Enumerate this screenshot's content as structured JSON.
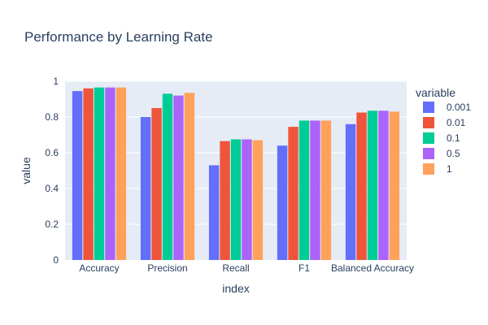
{
  "chart_data": {
    "type": "bar",
    "title": "Performance by Learning Rate",
    "xlabel": "index",
    "ylabel": "value",
    "ylim": [
      0,
      1
    ],
    "yticks": [
      0,
      0.2,
      0.4,
      0.6,
      0.8,
      1
    ],
    "ytick_labels": [
      "0",
      "0.2",
      "0.4",
      "0.6",
      "0.8",
      "1"
    ],
    "grid": true,
    "legend_title": "variable",
    "legend_position": "right",
    "categories": [
      "Accuracy",
      "Precision",
      "Recall",
      "F1",
      "Balanced Accuracy"
    ],
    "series": [
      {
        "name": "0.001",
        "color": "#636efa",
        "values": [
          0.945,
          0.8,
          0.53,
          0.64,
          0.76
        ]
      },
      {
        "name": "0.01",
        "color": "#ef553b",
        "values": [
          0.96,
          0.85,
          0.665,
          0.745,
          0.825
        ]
      },
      {
        "name": "0.1",
        "color": "#00cc96",
        "values": [
          0.965,
          0.93,
          0.675,
          0.78,
          0.835
        ]
      },
      {
        "name": "0.5",
        "color": "#ab63fa",
        "values": [
          0.965,
          0.92,
          0.675,
          0.78,
          0.835
        ]
      },
      {
        "name": "1",
        "color": "#ffa15a",
        "values": [
          0.965,
          0.935,
          0.67,
          0.78,
          0.83
        ]
      }
    ],
    "plot_background": "#e5ecf6",
    "text_color": "#2a3f5f"
  }
}
